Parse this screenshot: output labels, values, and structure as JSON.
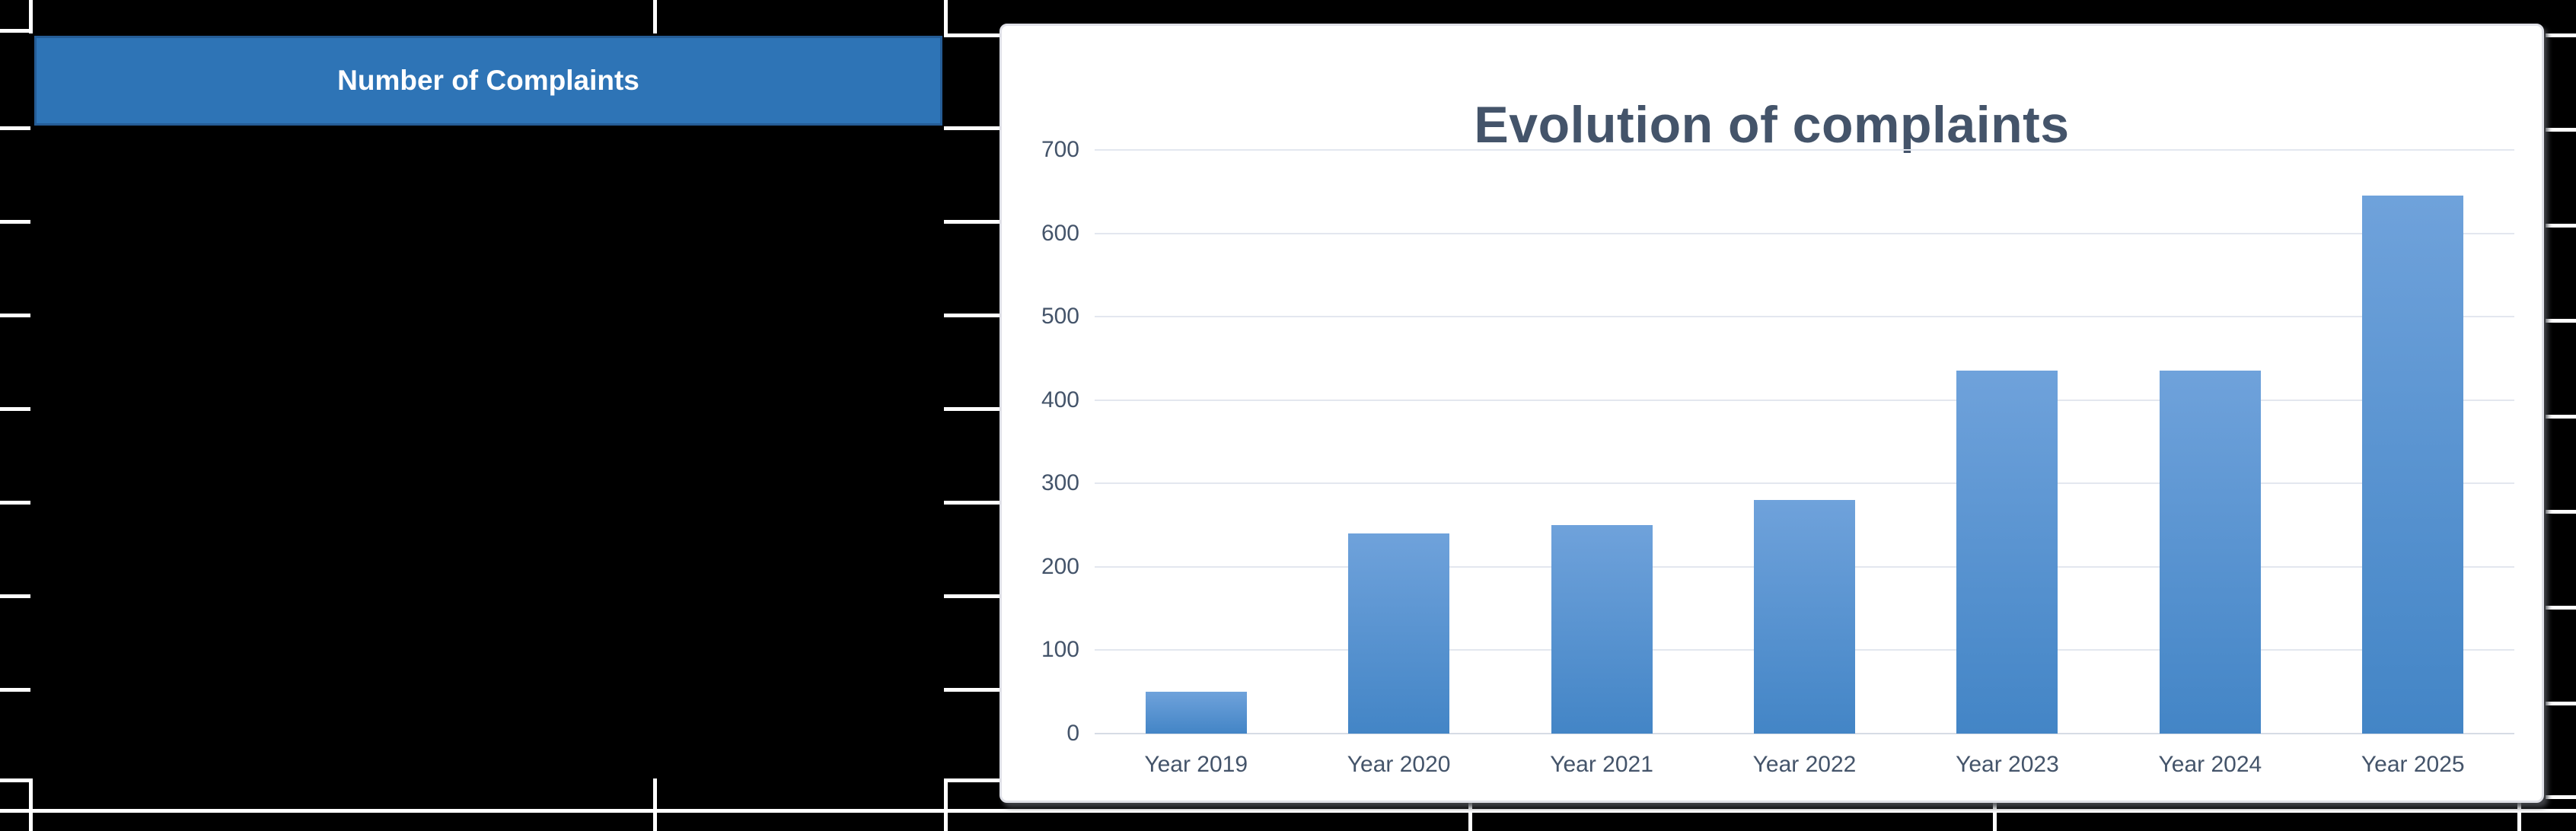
{
  "table": {
    "header_label": "Number of Complaints"
  },
  "chart": {
    "title": "Evolution of complaints"
  },
  "chart_data": {
    "type": "bar",
    "title": "Evolution of complaints",
    "categories": [
      "Year 2019",
      "Year 2020",
      "Year 2021",
      "Year 2022",
      "Year 2023",
      "Year 2024",
      "Year 2025"
    ],
    "values": [
      50,
      240,
      250,
      280,
      435,
      435,
      645
    ],
    "series": [
      {
        "name": "Number of Complaints",
        "values": [
          50,
          240,
          250,
          280,
          435,
          435,
          645
        ]
      }
    ],
    "xlabel": "",
    "ylabel": "",
    "ylim": [
      0,
      700
    ],
    "ytick_step": 100,
    "ytick_labels": [
      "0",
      "100",
      "200",
      "300",
      "400",
      "500",
      "600",
      "700"
    ],
    "grid": "on",
    "legend": "none"
  },
  "colors": {
    "canvas_bg": "#000000",
    "grid_stub": "#FFFFFF",
    "header_fill": "#2E74B6",
    "header_border": "#255C95",
    "header_text": "#FFFFFF",
    "text_ink": "#44546A",
    "chart_bg": "#FFFFFF",
    "chart_border": "#E0E1E8",
    "plot_gridline": "#E3E7EF",
    "plot_axis_line": "#D6DCE5",
    "bar_gradient_top": "#6FA2DB",
    "bar_gradient_bottom": "#4385C6"
  }
}
